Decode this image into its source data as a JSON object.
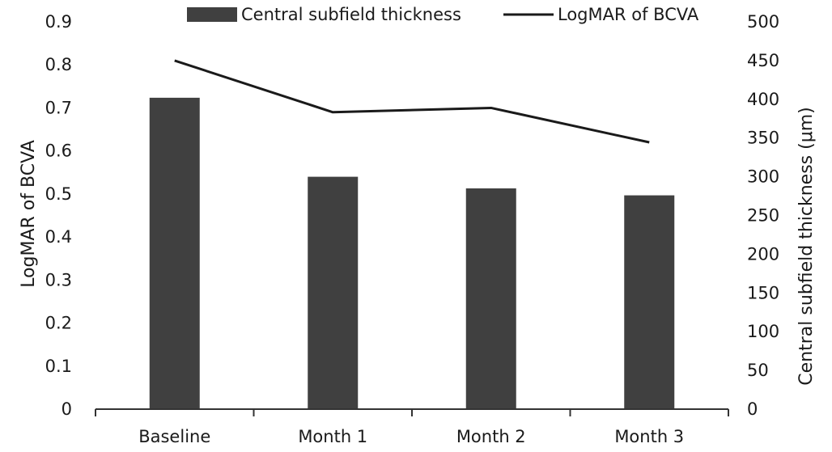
{
  "chart_data": {
    "type": "bar",
    "categories": [
      "Baseline",
      "Month 1",
      "Month 2",
      "Month 3"
    ],
    "series": [
      {
        "name": "Central subfield thickness",
        "type": "bar",
        "axis": "right",
        "values": [
          402,
          300,
          285,
          276
        ]
      },
      {
        "name": "LogMAR of BCVA",
        "type": "line",
        "axis": "left",
        "values": [
          0.81,
          0.69,
          0.7,
          0.62
        ]
      }
    ],
    "xlabel": "",
    "ylabel": "LogMAR of BCVA",
    "y2label": "Central subfield thickness (μm)",
    "ylim": [
      0,
      0.9
    ],
    "y2lim": [
      0,
      500
    ],
    "yticks": [
      "0",
      "0.1",
      "0.2",
      "0.3",
      "0.4",
      "0.5",
      "0.6",
      "0.7",
      "0.8",
      "0.9"
    ],
    "y2ticks": [
      "0",
      "50",
      "100",
      "150",
      "200",
      "250",
      "300",
      "350",
      "400",
      "450",
      "500"
    ],
    "grid": false,
    "legend": "top-center",
    "colors": {
      "bar": "#404040",
      "line": "#1a1a1a",
      "axis": "#333333"
    }
  }
}
